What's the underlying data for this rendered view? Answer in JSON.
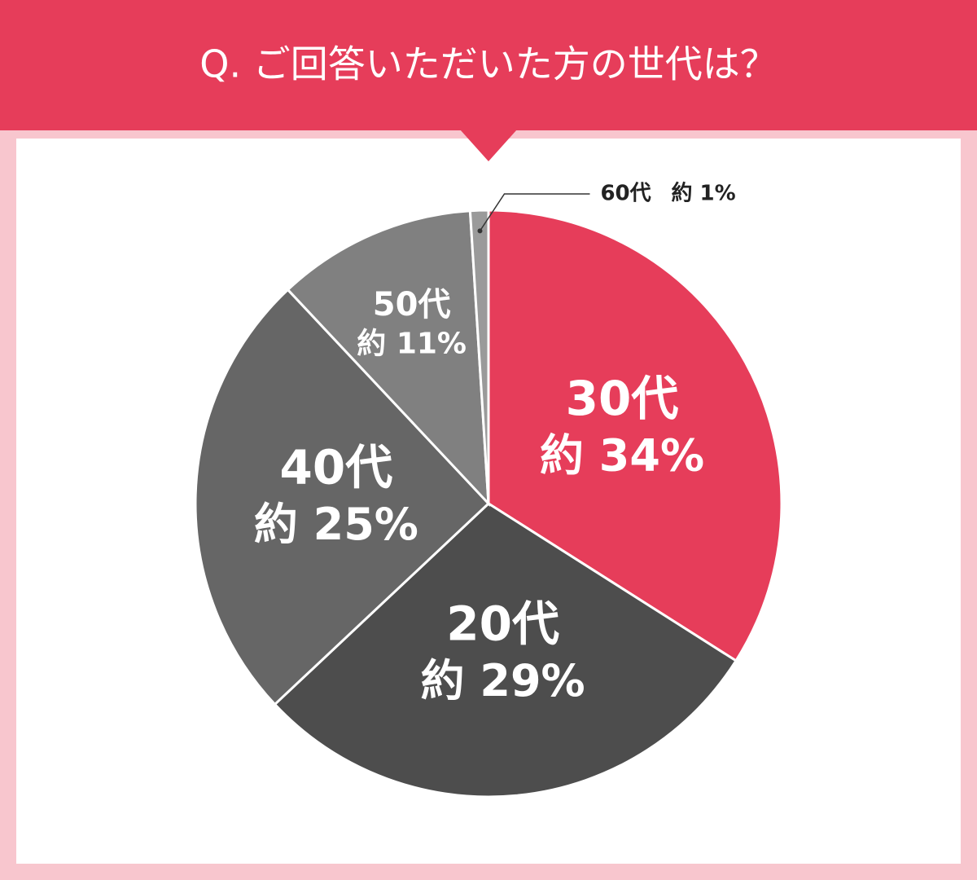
{
  "chart_data": {
    "type": "pie",
    "title": "Q. ご回答いただいた方の世代は？",
    "categories": [
      "30代",
      "20代",
      "40代",
      "50代",
      "60代"
    ],
    "values": [
      34,
      29,
      25,
      11,
      1
    ],
    "value_labels": [
      "約 34%",
      "約 29%",
      "約 25%",
      "約 11%",
      "約 1%"
    ],
    "colors": [
      "#e63d5a",
      "#4d4d4d",
      "#666666",
      "#808080",
      "#9a9a9a"
    ]
  }
}
